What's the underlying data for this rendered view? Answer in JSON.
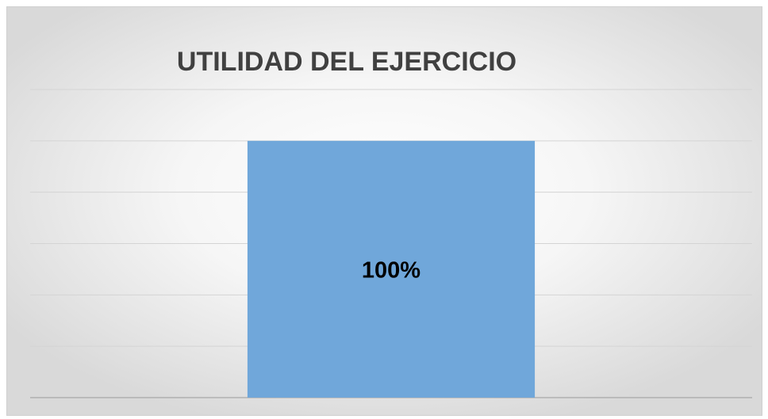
{
  "chart_data": {
    "type": "bar",
    "title": "UTILIDAD DEL EJERCICIO",
    "categories": [
      null
    ],
    "values": [
      100
    ],
    "value_labels": [
      "100%"
    ],
    "color": "#70a7da",
    "ylim": [
      0,
      120
    ],
    "yticks": [
      0,
      20,
      40,
      60,
      80,
      100,
      120
    ],
    "grid": true
  }
}
